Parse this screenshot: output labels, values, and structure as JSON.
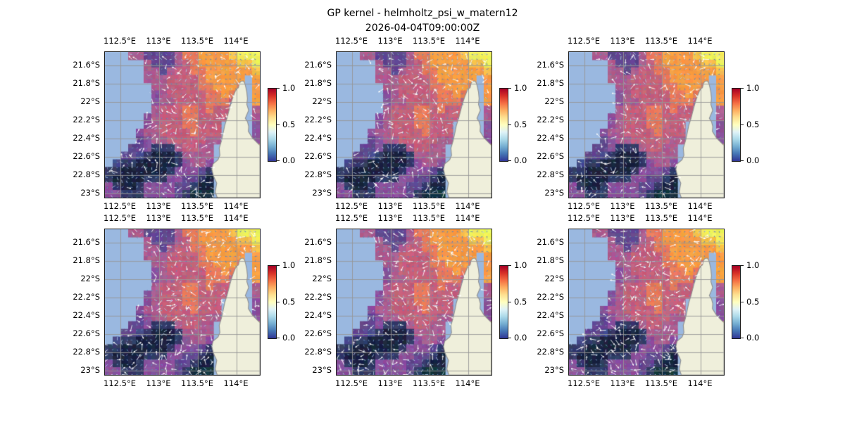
{
  "title": "GP kernel - helmholtz_psi_w_matern12",
  "subtitle": "2026-04-04T09:00:00Z",
  "chart_data": {
    "type": "heatmap",
    "layout_grid": "2 rows x 3 cols, six map panels with identical axes",
    "x_ticks": [
      "112.5°E",
      "113°E",
      "113.5°E",
      "114°E"
    ],
    "x_ticks_shown": "top and bottom of every panel",
    "y_ticks": [
      "21.6°S",
      "21.8°S",
      "22°S",
      "22.2°S",
      "22.4°S",
      "22.6°S",
      "22.8°S",
      "23°S"
    ],
    "x_range_deg_east": [
      112.3,
      114.28
    ],
    "y_range_deg_south": [
      21.45,
      23.05
    ],
    "colorbar": {
      "ticks_top_to_bottom": [
        "1.0",
        "0.5",
        "0.0"
      ],
      "value_range": [
        0.0,
        1.0
      ],
      "colormap": "RdYlBu reversed (blue low, cream mid, red high)",
      "gradient_stops_bottom_to_top": [
        "#313695",
        "#4575b4",
        "#74add1",
        "#abd9e9",
        "#e0f3f8",
        "#ffffbf",
        "#fee090",
        "#fdae61",
        "#f46d43",
        "#d73027",
        "#a50026"
      ]
    },
    "field": {
      "description": "GP posterior field over ocean, plasma-like colors: yellow high NE corner, orange band north, rose/mauve center, dark navy lows SW and S",
      "cols": 20,
      "rows": 19,
      "palette": {
        "Y": "#eff05c",
        "L": "#f6c24c",
        "O": "#f89c44",
        "o": "#e87a5c",
        "M": "#c5607b",
        "m": "#ac5c8e",
        "P": "#8a4f9b",
        "p": "#62478f",
        "B": "#474b8c",
        "D": "#333a66",
        "N": "#1a2340",
        "K": "#14333f"
      },
      "mask_note": ". = no data (ocean shows through)",
      "grid_rows": [
        "...mmppppmooOOOOLYYY",
        ".....mpppmMoOOOOOLLY",
        ".....mmpmMMooOOOOOOL",
        ".....mmmMMMMoOOOOO.O",
        "......mmMMMMooOOOo.O",
        "......PmMMMMMooOo..O",
        "......PmmMMMMoooM..O",
        "......mMMMooMoMM...m",
        ".....PmMMMooMMMM...m",
        ".....PmMMMooMMM....P",
        "....PmmMMMMoMMM....P",
        "....pPmmMMMMMmm....P",
        "...ppPDDDmMMmm.....O",
        "..ppBDNNNDmmmm......",
        ".BDDNNNNNDPmmP......",
        "DDNNNNNNDPPPpD......",
        "DNNNNDDDPPppDN......",
        "PDNNDPPPPppDNN......",
        "PPDDDPPPPpDKKK......"
      ]
    },
    "quiver_overlay": {
      "spacing_px": 7,
      "style": "small blue-gray dots with white/pale-blue velocity streaks, only over the data field"
    },
    "geography": {
      "land_name": "coastal peninsula on east side",
      "land_polygon_uv": [
        [
          0.862,
          0.245
        ],
        [
          0.868,
          0.215
        ],
        [
          0.878,
          0.2
        ],
        [
          0.893,
          0.198
        ],
        [
          0.902,
          0.212
        ],
        [
          0.908,
          0.235
        ],
        [
          0.916,
          0.275
        ],
        [
          0.92,
          0.32
        ],
        [
          0.916,
          0.36
        ],
        [
          0.928,
          0.4
        ],
        [
          0.916,
          0.43
        ],
        [
          0.906,
          0.455
        ],
        [
          0.92,
          0.478
        ],
        [
          0.928,
          0.51
        ],
        [
          0.926,
          0.545
        ],
        [
          0.952,
          0.59
        ],
        [
          0.985,
          0.625
        ],
        [
          1.0,
          0.64
        ],
        [
          1.0,
          1.0
        ],
        [
          0.725,
          1.0
        ],
        [
          0.712,
          0.96
        ],
        [
          0.722,
          0.9
        ],
        [
          0.7,
          0.85
        ],
        [
          0.69,
          0.805
        ],
        [
          0.698,
          0.768
        ],
        [
          0.73,
          0.74
        ],
        [
          0.742,
          0.71
        ],
        [
          0.738,
          0.66
        ],
        [
          0.752,
          0.61
        ],
        [
          0.763,
          0.558
        ],
        [
          0.773,
          0.505
        ],
        [
          0.788,
          0.455
        ],
        [
          0.8,
          0.405
        ],
        [
          0.814,
          0.35
        ],
        [
          0.828,
          0.305
        ],
        [
          0.842,
          0.268
        ],
        [
          0.852,
          0.252
        ]
      ]
    },
    "panels": [
      {
        "name": "panel-r1c1",
        "seed": 11,
        "long_arrow_prob": 0.2
      },
      {
        "name": "panel-r1c2",
        "seed": 22,
        "long_arrow_prob": 0.2
      },
      {
        "name": "panel-r1c3",
        "seed": 33,
        "long_arrow_prob": 0.2
      },
      {
        "name": "panel-r2c1",
        "seed": 44,
        "long_arrow_prob": 0.3
      },
      {
        "name": "panel-r2c2",
        "seed": 55,
        "long_arrow_prob": 0.3
      },
      {
        "name": "panel-r2c3",
        "seed": 66,
        "long_arrow_prob": 0.3
      }
    ]
  },
  "colors": {
    "background": "#ffffff",
    "ocean": "#9ab8e0",
    "land": "#efefdb",
    "coastline": "#8f8f8f",
    "graticule": "#9a9a9a",
    "frame": "#1c1c1c",
    "text": "#000000"
  }
}
